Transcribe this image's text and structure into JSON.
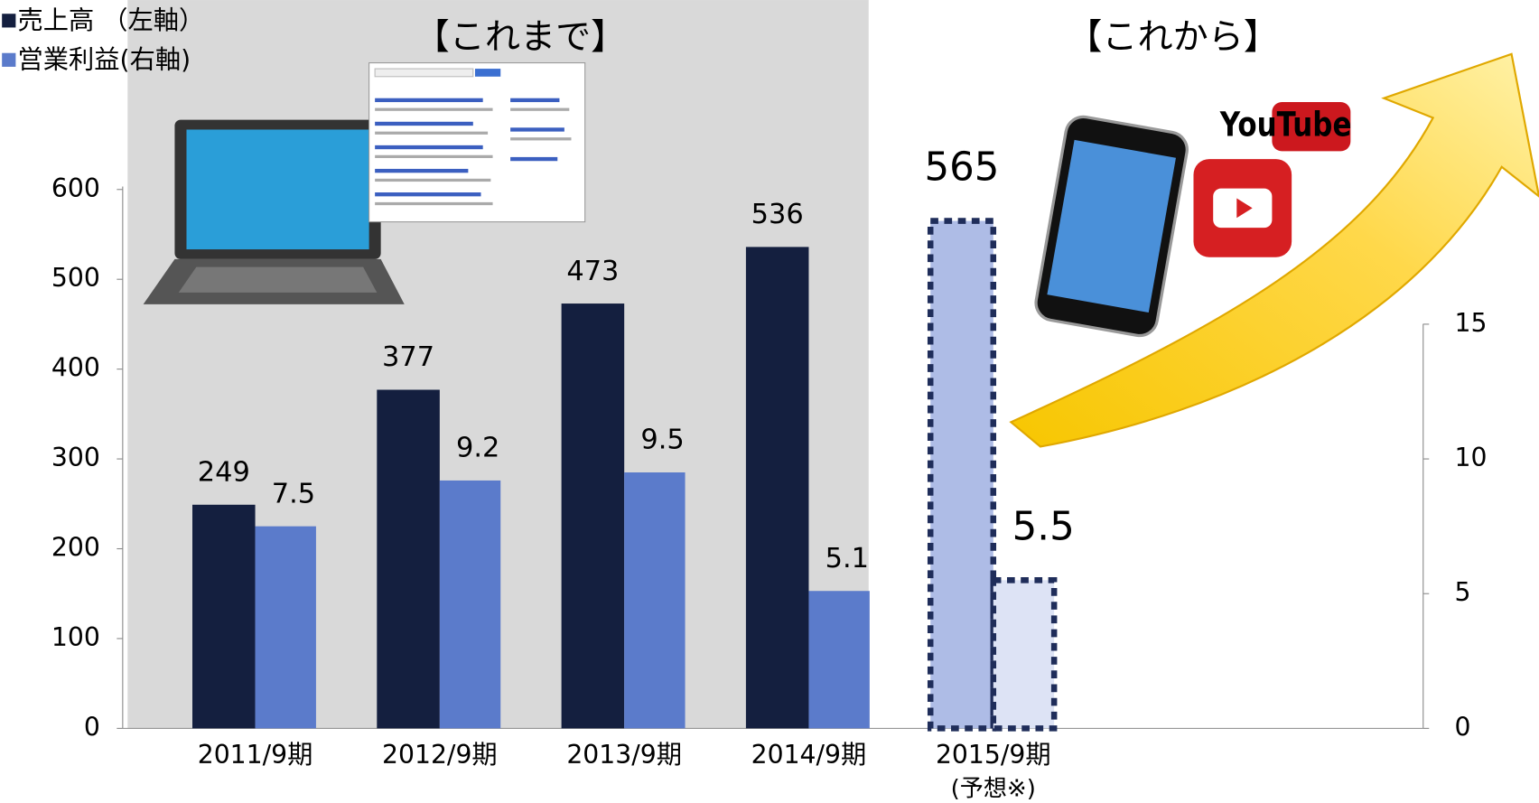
{
  "chart_data": {
    "type": "bar",
    "section_labels": [
      "【これまで】",
      "【これから】"
    ],
    "categories": [
      "2011/9期",
      "2012/9期",
      "2013/9期",
      "2014/9期",
      "2015/9期"
    ],
    "category_note": "(予想※)",
    "series": [
      {
        "name": "売上高 （左軸）",
        "color": "#141f3f",
        "label_color": "#c00000",
        "values": [
          249,
          377,
          473,
          536,
          565
        ]
      },
      {
        "name": "営業利益(右軸)",
        "color": "#5b7bcb",
        "label_color": "#000000",
        "axis": "y2",
        "values": [
          7.5,
          9.2,
          9.5,
          5.1,
          5.5
        ]
      }
    ],
    "forecast_colors": [
      "#aebce6",
      "#dde3f5"
    ],
    "ylim": [
      0,
      600
    ],
    "yticks": [
      0,
      100,
      200,
      300,
      400,
      500,
      600
    ],
    "y2lim": [
      0,
      20
    ],
    "y2ticks": [
      0,
      5,
      10,
      15
    ],
    "logo_text": "YouTube"
  }
}
